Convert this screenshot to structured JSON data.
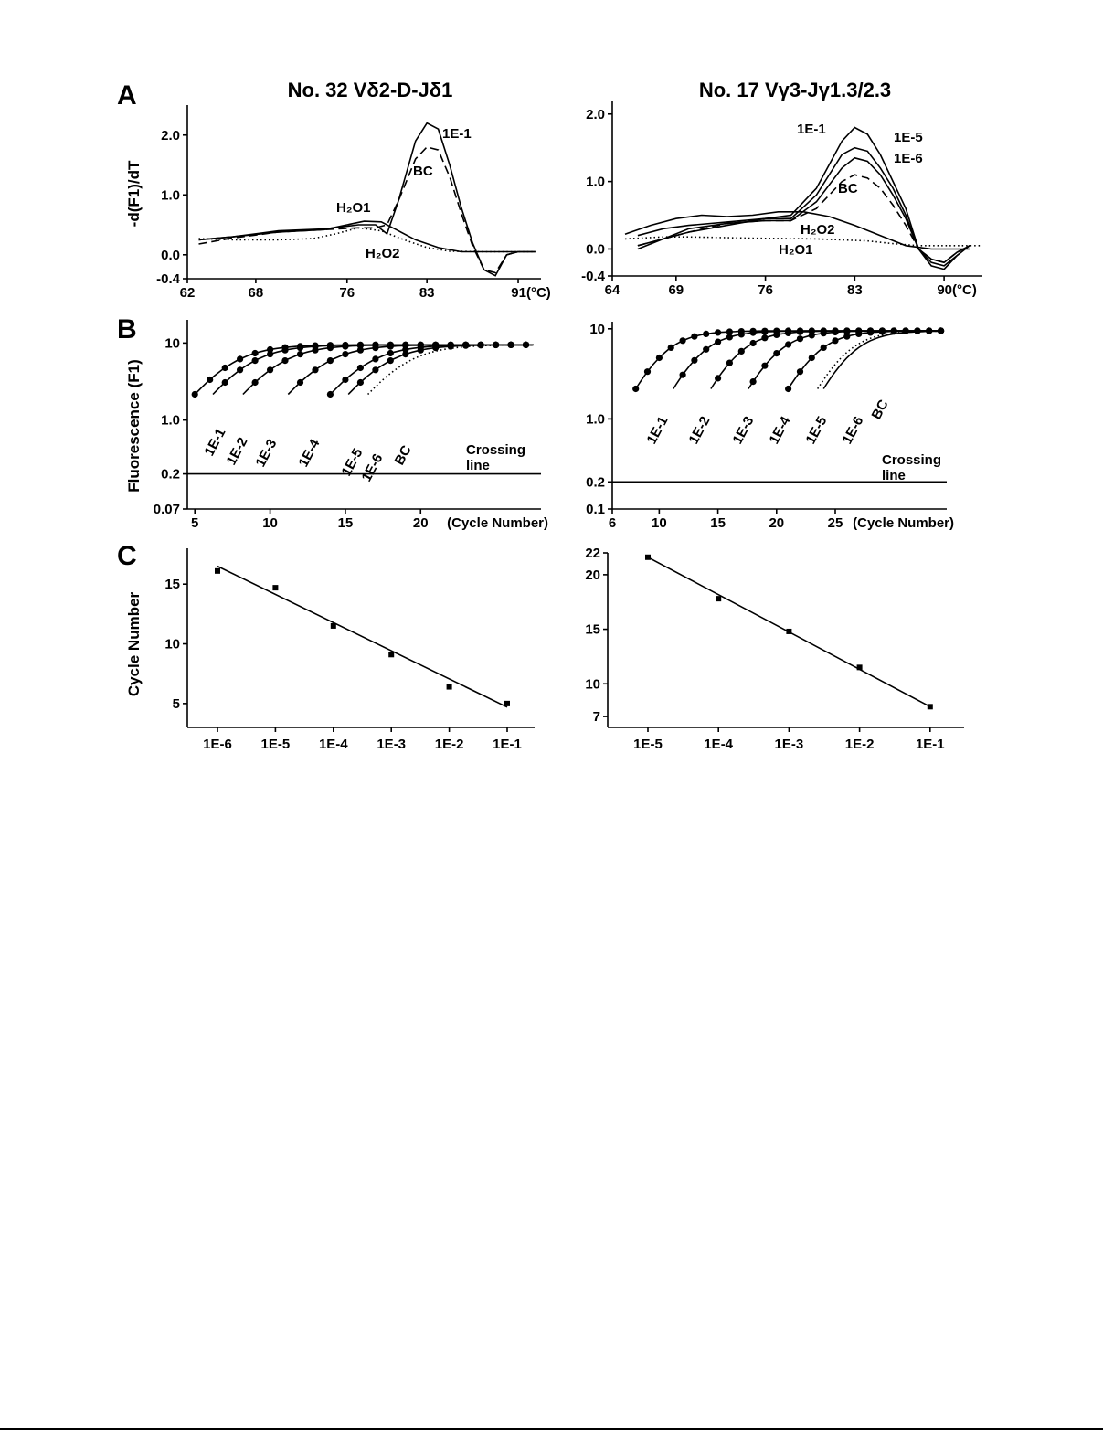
{
  "panels": {
    "A": "A",
    "B": "B",
    "C": "C"
  },
  "columns": {
    "left_title": "No. 32 Vδ2-D-Jδ1",
    "right_title": "No. 17 Vγ3-Jγ1.3/2.3"
  },
  "axis_labels": {
    "melt_y": "-d(F1)/dT",
    "amp_y": "Fluorescence (F1)",
    "std_y": "Cycle Number"
  },
  "chart_data": [
    {
      "id": "A-left",
      "type": "line",
      "title": "No. 32 Vδ2-D-Jδ1",
      "xlabel": "",
      "ylabel": "-d(F1)/dT",
      "x_unit": "(°C)",
      "xlim": [
        62,
        93
      ],
      "ylim": [
        -0.4,
        2.5
      ],
      "xticks": [
        62,
        68,
        76,
        83,
        91
      ],
      "yticks": [
        -0.4,
        0.0,
        1.0,
        2.0
      ],
      "series": [
        {
          "name": "1E-1",
          "style": "solid",
          "x": [
            63,
            66,
            70,
            74,
            77,
            78.5,
            79.5,
            80.5,
            82,
            83,
            84,
            85,
            86,
            87,
            88,
            89,
            90,
            91,
            92.5
          ],
          "y": [
            0.25,
            0.3,
            0.4,
            0.43,
            0.5,
            0.5,
            0.35,
            0.9,
            1.9,
            2.2,
            2.1,
            1.5,
            0.8,
            0.2,
            -0.25,
            -0.35,
            0.0,
            0.05,
            0.05
          ]
        },
        {
          "name": "BC",
          "style": "dashed",
          "x": [
            63,
            66,
            70,
            74,
            77,
            78.5,
            79.5,
            80.5,
            82,
            83,
            84,
            85,
            86,
            87,
            88,
            89,
            90,
            91
          ],
          "y": [
            0.18,
            0.28,
            0.38,
            0.42,
            0.45,
            0.45,
            0.5,
            0.9,
            1.6,
            1.8,
            1.75,
            1.3,
            0.7,
            0.15,
            -0.25,
            -0.3,
            0.0,
            0.05
          ]
        },
        {
          "name": "H₂O1",
          "style": "solid",
          "x": [
            63,
            66,
            70,
            74,
            76,
            77.5,
            79,
            80.5,
            82,
            84,
            86,
            88,
            90,
            92.5
          ],
          "y": [
            0.25,
            0.3,
            0.38,
            0.42,
            0.5,
            0.56,
            0.55,
            0.4,
            0.25,
            0.12,
            0.05,
            0.05,
            0.05,
            0.05
          ]
        },
        {
          "name": "H₂O2",
          "style": "dotted",
          "x": [
            63,
            66,
            70,
            73,
            75,
            77,
            79,
            81,
            83,
            85,
            88,
            92.5
          ],
          "y": [
            0.27,
            0.25,
            0.25,
            0.27,
            0.35,
            0.45,
            0.4,
            0.25,
            0.12,
            0.06,
            0.05,
            0.05
          ]
        }
      ],
      "annotations": [
        "1E-1",
        "BC",
        "H₂O1",
        "H₂O2"
      ]
    },
    {
      "id": "A-right",
      "type": "line",
      "title": "No. 17 Vγ3-Jγ1.3/2.3",
      "xlabel": "",
      "ylabel": "",
      "x_unit": "(°C)",
      "xlim": [
        64,
        93
      ],
      "ylim": [
        -0.4,
        2.2
      ],
      "xticks": [
        64,
        69,
        76,
        83,
        90
      ],
      "yticks": [
        -0.4,
        0.0,
        1.0,
        2.0
      ],
      "series": [
        {
          "name": "1E-1",
          "style": "solid",
          "x": [
            66,
            68,
            70,
            73,
            76,
            78,
            80,
            82,
            83,
            84,
            85,
            86,
            87,
            88,
            89,
            90,
            91,
            92
          ],
          "y": [
            0.05,
            0.15,
            0.25,
            0.35,
            0.45,
            0.5,
            0.9,
            1.6,
            1.8,
            1.7,
            1.4,
            1.0,
            0.6,
            0.0,
            -0.25,
            -0.3,
            -0.1,
            0.05
          ]
        },
        {
          "name": "1E-5",
          "style": "solid",
          "x": [
            66,
            68,
            70,
            73,
            76,
            78,
            80,
            82,
            83,
            84,
            85,
            86,
            87,
            88,
            89,
            90,
            91,
            92
          ],
          "y": [
            0.2,
            0.3,
            0.35,
            0.4,
            0.45,
            0.45,
            0.8,
            1.4,
            1.5,
            1.45,
            1.2,
            0.9,
            0.5,
            0.0,
            -0.2,
            -0.25,
            -0.1,
            0.05
          ]
        },
        {
          "name": "1E-6",
          "style": "solid",
          "x": [
            66,
            68,
            70,
            73,
            76,
            78,
            80,
            82,
            83,
            84,
            85,
            86,
            87,
            88,
            89,
            90,
            91,
            92
          ],
          "y": [
            0.0,
            0.15,
            0.3,
            0.38,
            0.42,
            0.42,
            0.7,
            1.2,
            1.35,
            1.3,
            1.1,
            0.8,
            0.45,
            0.0,
            -0.15,
            -0.2,
            -0.05,
            0.05
          ]
        },
        {
          "name": "BC",
          "style": "dashed",
          "x": [
            66,
            68,
            70,
            73,
            76,
            78,
            80,
            82,
            83,
            84,
            85,
            86,
            87,
            88,
            89,
            90,
            91,
            92
          ],
          "y": [
            0.05,
            0.15,
            0.25,
            0.38,
            0.42,
            0.42,
            0.6,
            1.0,
            1.1,
            1.05,
            0.9,
            0.65,
            0.35,
            0.0,
            -0.15,
            -0.2,
            -0.05,
            0.05
          ]
        },
        {
          "name": "H₂O2",
          "style": "solid",
          "x": [
            65,
            67,
            69,
            71,
            73,
            75,
            77,
            79,
            81,
            83,
            85,
            87,
            89,
            91,
            92
          ],
          "y": [
            0.22,
            0.35,
            0.45,
            0.5,
            0.48,
            0.5,
            0.55,
            0.55,
            0.48,
            0.35,
            0.2,
            0.05,
            0.0,
            0.0,
            0.0
          ]
        },
        {
          "name": "H₂O1",
          "style": "dotted",
          "x": [
            65,
            68,
            70,
            75,
            80,
            84,
            86,
            88,
            90,
            93
          ],
          "y": [
            0.15,
            0.18,
            0.18,
            0.16,
            0.15,
            0.12,
            0.08,
            0.05,
            0.05,
            0.05
          ]
        }
      ],
      "annotations": [
        "1E-1",
        "1E-5",
        "1E-6",
        "BC",
        "H₂O2",
        "H₂O1"
      ]
    },
    {
      "id": "B-left",
      "type": "line",
      "scale_y": "log",
      "xlabel": "(Cycle Number)",
      "ylabel": "Fluorescence (F1)",
      "xlim": [
        4.5,
        28
      ],
      "ylim": [
        0.07,
        20
      ],
      "xticks": [
        5,
        10,
        15,
        20
      ],
      "yticks": [
        0.07,
        0.2,
        1.0,
        10.0
      ],
      "crossing_line": 0.2,
      "crossing_label": [
        "Crossing",
        "line"
      ],
      "series": [
        {
          "name": "1E-1",
          "offset": 5,
          "markers": true
        },
        {
          "name": "1E-2",
          "offset": 6.2,
          "markers": true
        },
        {
          "name": "1E-3",
          "offset": 8.2,
          "markers": true
        },
        {
          "name": "1E-4",
          "offset": 11.2,
          "markers": true
        },
        {
          "name": "1E-5",
          "offset": 14.0,
          "markers": true
        },
        {
          "name": "1E-6",
          "offset": 15.2,
          "markers": true
        },
        {
          "name": "BC",
          "offset": 16.5,
          "markers": false
        }
      ]
    },
    {
      "id": "B-right",
      "type": "line",
      "scale_y": "log",
      "xlabel": "(Cycle Number)",
      "ylabel": "",
      "xlim": [
        6,
        34.5
      ],
      "ylim": [
        0.1,
        12
      ],
      "xticks": [
        6,
        10,
        15,
        20,
        25
      ],
      "yticks": [
        0.1,
        0.2,
        1.0,
        10.0
      ],
      "crossing_line": 0.2,
      "crossing_label": [
        "Crossing",
        "line"
      ],
      "series": [
        {
          "name": "1E-1",
          "offset": 8.0,
          "markers": true
        },
        {
          "name": "1E-2",
          "offset": 11.2,
          "markers": true
        },
        {
          "name": "1E-3",
          "offset": 14.4,
          "markers": true
        },
        {
          "name": "1E-4",
          "offset": 17.6,
          "markers": true
        },
        {
          "name": "1E-5",
          "offset": 21.0,
          "markers": true
        },
        {
          "name": "1E-6",
          "offset": 24.0,
          "markers": false
        },
        {
          "name": "BC",
          "offset": 23.5,
          "markers": false
        }
      ]
    },
    {
      "id": "C-left",
      "type": "scatter",
      "xlabel": "",
      "ylabel": "Cycle Number",
      "categories": [
        "1E-6",
        "1E-5",
        "1E-4",
        "1E-3",
        "1E-2",
        "1E-1"
      ],
      "values": [
        16.1,
        14.7,
        11.5,
        9.1,
        6.4,
        5.0
      ],
      "fit_line": [
        16.5,
        4.7
      ],
      "ylim": [
        3,
        18
      ],
      "yticks": [
        5,
        10,
        15
      ]
    },
    {
      "id": "C-right",
      "type": "scatter",
      "xlabel": "",
      "ylabel": "",
      "categories": [
        "1E-5",
        "1E-4",
        "1E-3",
        "1E-2",
        "1E-1"
      ],
      "values": [
        21.6,
        17.8,
        14.8,
        11.5,
        7.9
      ],
      "fit_line": [
        21.6,
        7.9
      ],
      "ylim": [
        6,
        22
      ],
      "yticks": [
        7,
        10,
        15,
        20,
        22
      ]
    }
  ]
}
